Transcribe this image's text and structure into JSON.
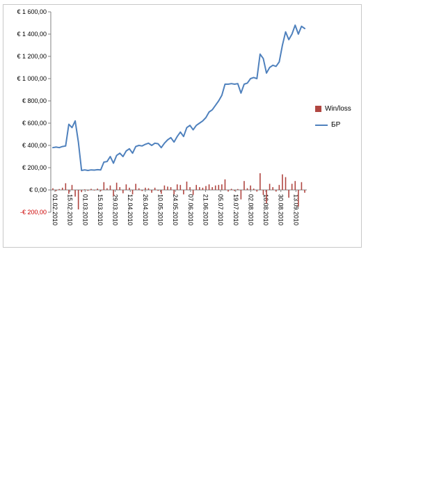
{
  "chart_data": {
    "type": "combo",
    "title": "",
    "xlabel": "",
    "ylabel": "",
    "ylim": [
      -200,
      1600
    ],
    "grid": false,
    "legend_position": "right",
    "y_tick_labels": [
      "€ 1 600,00",
      "€ 1 400,00",
      "€ 1 200,00",
      "€ 1 000,00",
      "€ 800,00",
      "€ 600,00",
      "€ 400,00",
      "€ 200,00",
      "€ 0,00",
      "-€ 200,00"
    ],
    "y_tick_values": [
      1600,
      1400,
      1200,
      1000,
      800,
      600,
      400,
      200,
      0,
      -200
    ],
    "x_labels": [
      "01.02.2010",
      "15.02.2010",
      "01.03.2010",
      "15.03.2010",
      "29.03.2010",
      "12.04.2010",
      "26.04.2010",
      "10.05.2010",
      "24.05.2010",
      "07.06.2010",
      "21.06.2010",
      "05.07.2010",
      "19.07.2010",
      "02.08.2010",
      "16.08.2010",
      "30.08.2010",
      "13.09.2010"
    ],
    "series": [
      {
        "name": "Win/loss",
        "type": "bar",
        "color": "#b04641",
        "values": [
          15,
          -10,
          8,
          20,
          60,
          -35,
          45,
          -60,
          -175,
          -20,
          5,
          -8,
          10,
          -5,
          12,
          -10,
          70,
          15,
          40,
          -55,
          65,
          25,
          -30,
          50,
          20,
          -40,
          55,
          15,
          -10,
          20,
          15,
          -25,
          20,
          -8,
          -35,
          40,
          30,
          25,
          -40,
          50,
          45,
          -40,
          75,
          25,
          -45,
          45,
          25,
          20,
          35,
          50,
          25,
          40,
          45,
          50,
          95,
          -15,
          10,
          -10,
          8,
          -85,
          80,
          15,
          40,
          12,
          -15,
          150,
          -45,
          -120,
          55,
          25,
          -15,
          45,
          140,
          115,
          -70,
          55,
          80,
          -150,
          70,
          -25
        ]
      },
      {
        "name": "БР",
        "type": "line",
        "color": "#4f81bd",
        "values": [
          380,
          385,
          380,
          390,
          395,
          590,
          560,
          620,
          430,
          175,
          180,
          175,
          180,
          178,
          182,
          180,
          250,
          255,
          300,
          240,
          310,
          330,
          300,
          350,
          370,
          330,
          390,
          400,
          395,
          410,
          420,
          400,
          420,
          415,
          380,
          420,
          450,
          470,
          430,
          480,
          520,
          480,
          560,
          580,
          540,
          580,
          600,
          620,
          650,
          700,
          720,
          760,
          800,
          850,
          950,
          950,
          955,
          950,
          955,
          870,
          950,
          960,
          1000,
          1010,
          1000,
          1220,
          1180,
          1050,
          1100,
          1120,
          1110,
          1150,
          1300,
          1420,
          1350,
          1400,
          1480,
          1400,
          1470,
          1450
        ]
      }
    ],
    "colors": {
      "axis": "#808080",
      "text": "#000000",
      "negative_tick": "#cc0000"
    }
  }
}
